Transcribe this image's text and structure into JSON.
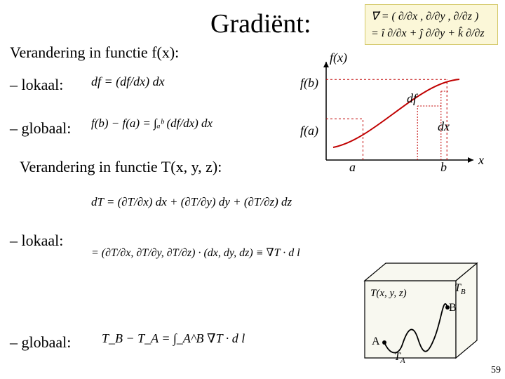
{
  "title": "Gradiënt:",
  "subtitle1": "Verandering in functie f(x):",
  "bullet_lokaal": "– lokaal:",
  "bullet_globaal": "– globaal:",
  "subtitle2": "Verandering in functie T(x, y, z):",
  "math_lokaal_fx": "df = (df/dx) dx",
  "math_globaal_fx": "f(b) − f(a) = ∫ₐᵇ (df/dx) dx",
  "math_lokaal_T1": "dT = (∂T/∂x) dx + (∂T/∂y) dy + (∂T/∂z) dz",
  "math_lokaal_T2": "= (∂T/∂x, ∂T/∂y, ∂T/∂z) · (dx, dy, dz) ≡ ∇T · d l⃗",
  "math_globaal_T": "T_B − T_A = ∫_A^B ∇T · d l⃗",
  "grad_def1": "∇⃗ = ( ∂/∂x , ∂/∂y , ∂/∂z )",
  "grad_def2": "= î ∂/∂x + ĵ ∂/∂y + k̂ ∂/∂z",
  "graph": {
    "fx_label": "f(x)",
    "fb_label": "f(b)",
    "fa_label": "f(a)",
    "df_label": "df",
    "dx_label": "dx",
    "a_label": "a",
    "b_label": "b",
    "x_label": "x",
    "fa_y": 0.65,
    "fb_y": 0.25,
    "a_x": 0.25,
    "b_x": 0.82,
    "dx_x1": 0.62,
    "dx_x2": 0.78,
    "df_y1": 0.3,
    "df_y2": 0.5,
    "axis_color": "#000000",
    "curve_color": "#c00000",
    "dash_color": "#c00000"
  },
  "cube": {
    "T_label": "T(x, y, z)",
    "A_label": "A",
    "B_label": "B",
    "TA_label": "T_A",
    "TB_label": "T_B",
    "stroke": "#000000",
    "fill": "#f8f8f0",
    "path_color": "#000000"
  },
  "page_number": "59"
}
